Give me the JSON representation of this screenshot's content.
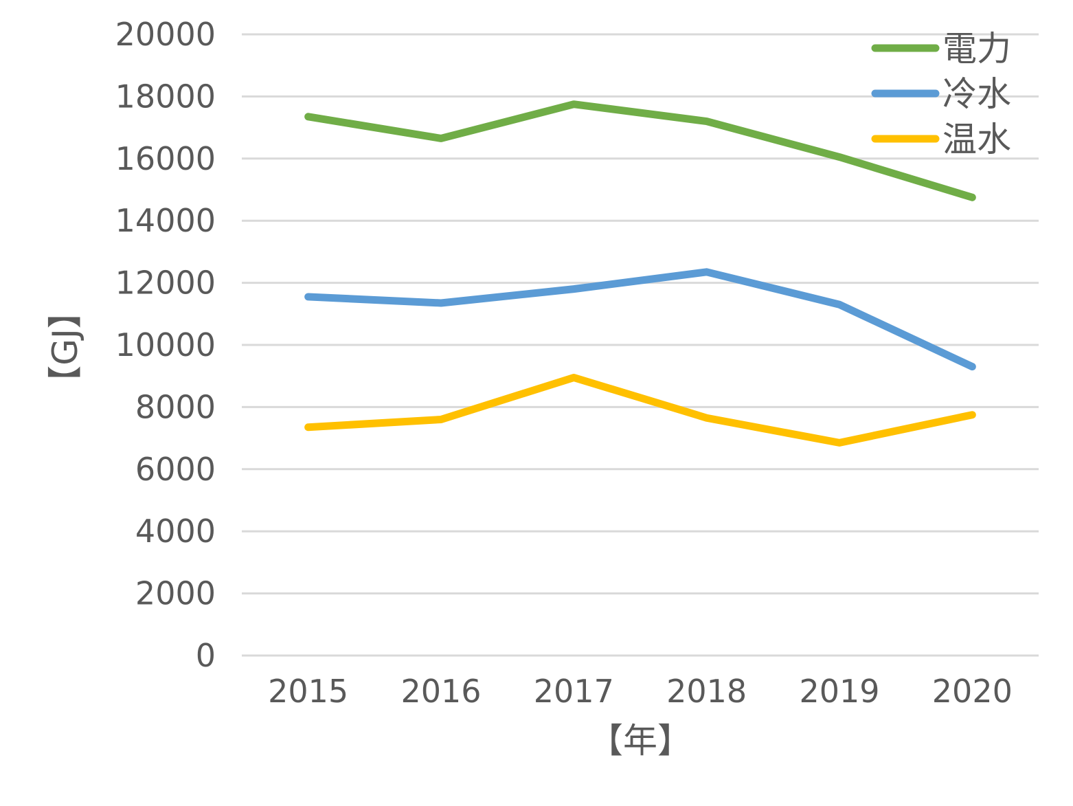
{
  "chart_data": {
    "type": "line",
    "title": "",
    "xlabel": "【年】",
    "ylabel": "【GJ】",
    "categories": [
      "2015",
      "2016",
      "2017",
      "2018",
      "2019",
      "2020"
    ],
    "y_ticks": [
      "0",
      "2000",
      "4000",
      "6000",
      "8000",
      "10000",
      "12000",
      "14000",
      "16000",
      "18000",
      "20000"
    ],
    "ylim": [
      0,
      20000
    ],
    "grid": true,
    "legend_position": "top-right",
    "series": [
      {
        "name": "電力",
        "color": "#70AD47",
        "values": [
          17350,
          16650,
          17750,
          17200,
          16050,
          14750
        ]
      },
      {
        "name": "冷水",
        "color": "#5B9BD5",
        "values": [
          11550,
          11350,
          11800,
          12350,
          11300,
          9300
        ]
      },
      {
        "name": "温水",
        "color": "#FFC000",
        "values": [
          7350,
          7600,
          8950,
          7650,
          6850,
          7750
        ]
      }
    ]
  }
}
